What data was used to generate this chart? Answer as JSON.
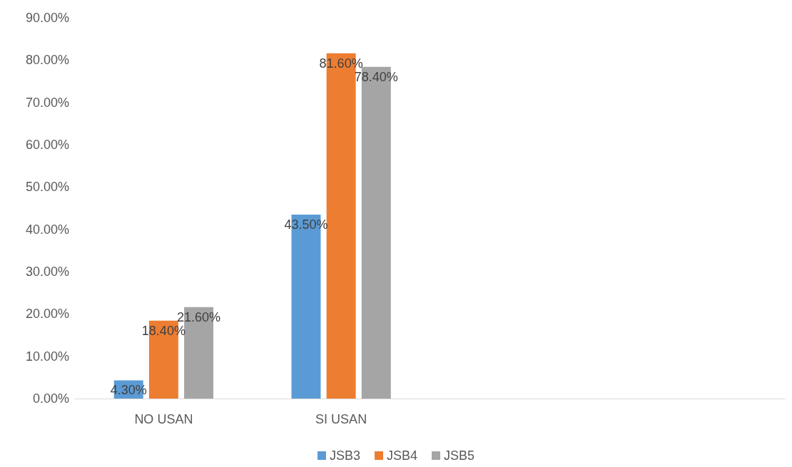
{
  "chart_data": {
    "type": "bar",
    "categories": [
      "NO USAN",
      "SI USAN",
      null,
      null
    ],
    "series": [
      {
        "name": "JSB3",
        "color": "#5b9bd5",
        "values": [
          4.3,
          43.5,
          null,
          null
        ],
        "value_labels": [
          "4.30%",
          "43.50%",
          null,
          null
        ]
      },
      {
        "name": "JSB4",
        "color": "#ed7d31",
        "values": [
          18.4,
          81.6,
          null,
          null
        ],
        "value_labels": [
          "18.40%",
          "81.60%",
          null,
          null
        ]
      },
      {
        "name": "JSB5",
        "color": "#a5a5a5",
        "values": [
          21.6,
          78.4,
          null,
          null
        ],
        "value_labels": [
          "21.60%",
          "78.40%",
          null,
          null
        ]
      }
    ],
    "ylim": [
      0,
      90
    ],
    "yticks": [
      {
        "value": 0,
        "label": "0.00%"
      },
      {
        "value": 10,
        "label": "10.00%"
      },
      {
        "value": 20,
        "label": "20.00%"
      },
      {
        "value": 30,
        "label": "30.00%"
      },
      {
        "value": 40,
        "label": "40.00%"
      },
      {
        "value": 50,
        "label": "50.00%"
      },
      {
        "value": 60,
        "label": "60.00%"
      },
      {
        "value": 70,
        "label": "70.00%"
      },
      {
        "value": 80,
        "label": "80.00%"
      },
      {
        "value": 90,
        "label": "90.00%"
      }
    ],
    "grid": false,
    "legend": "bottom"
  }
}
